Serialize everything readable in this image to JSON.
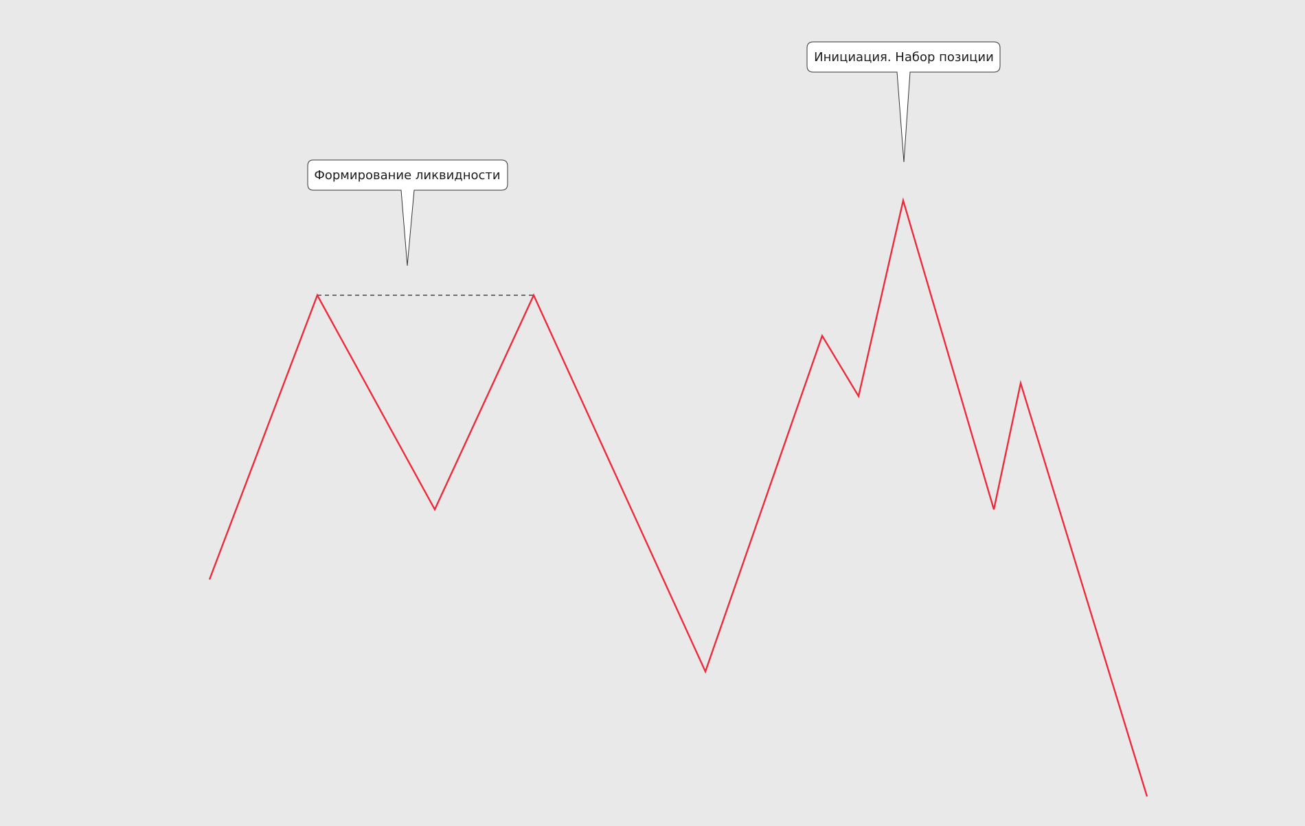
{
  "diagram": {
    "background_color": "#e9e9e9",
    "line_color": "#ee2a3a",
    "level_line_color": "#222222",
    "callout_fill": "#ffffff",
    "callout_stroke": "#333333",
    "callouts": [
      {
        "id": "liquidity",
        "text": "Формирование ликвидности"
      },
      {
        "id": "initiation",
        "text": "Инициация. Набор позиции"
      }
    ]
  }
}
